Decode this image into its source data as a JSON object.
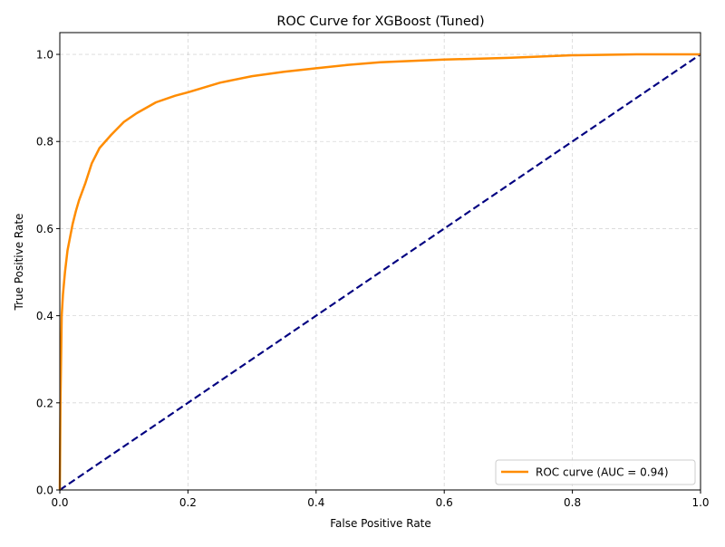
{
  "chart_data": {
    "type": "line",
    "title": "ROC Curve for XGBoost (Tuned)",
    "xlabel": "False Positive Rate",
    "ylabel": "True Positive Rate",
    "xlim": [
      0.0,
      1.0
    ],
    "ylim": [
      0.0,
      1.05
    ],
    "xticks": [
      "0.0",
      "0.2",
      "0.4",
      "0.6",
      "0.8",
      "1.0"
    ],
    "yticks": [
      "0.0",
      "0.2",
      "0.4",
      "0.6",
      "0.8",
      "1.0"
    ],
    "grid": true,
    "grid_style": "dashed",
    "legend_placement": "lower-right",
    "series": [
      {
        "name": "ROC curve (AUC = 0.94)",
        "color": "#ff8c00",
        "style": "solid",
        "x": [
          0,
          0.001,
          0.002,
          0.003,
          0.005,
          0.008,
          0.012,
          0.016,
          0.02,
          0.025,
          0.03,
          0.04,
          0.05,
          0.062,
          0.08,
          0.1,
          0.12,
          0.15,
          0.18,
          0.2,
          0.25,
          0.3,
          0.35,
          0.4,
          0.45,
          0.5,
          0.6,
          0.7,
          0.8,
          0.9,
          1.0
        ],
        "y": [
          0,
          0.2,
          0.3,
          0.4,
          0.45,
          0.5,
          0.55,
          0.58,
          0.61,
          0.64,
          0.665,
          0.705,
          0.75,
          0.785,
          0.815,
          0.845,
          0.865,
          0.89,
          0.905,
          0.913,
          0.935,
          0.95,
          0.96,
          0.968,
          0.976,
          0.982,
          0.988,
          0.992,
          0.998,
          1.0,
          1.0
        ]
      },
      {
        "color": "#000080",
        "style": "dashed",
        "x": [
          0,
          1
        ],
        "y": [
          0,
          1
        ]
      }
    ]
  }
}
